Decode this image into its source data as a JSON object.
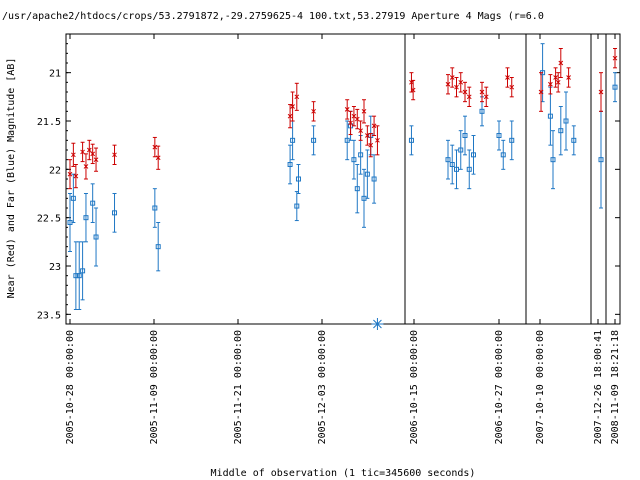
{
  "chart_data": {
    "type": "scatter",
    "title": "/usr/apache2/htdocs/crops/53.2791872,-29.2759625-4 100.txt,53.27919   Aperture 4 Mags (r=6.0",
    "xlabel": "Middle of observation (1 tic=345600 seconds)",
    "ylabel": "Near (Red) and Far (Blue) Magnitude [AB]",
    "y_reversed": true,
    "ylim": [
      23.6,
      20.6
    ],
    "yticks": [
      "21",
      "21.5",
      "22",
      "22.5",
      "23",
      "23.5"
    ],
    "ytick_values": [
      21,
      21.5,
      22,
      22.5,
      23,
      23.5
    ],
    "segments": [
      {
        "xlabels": [
          "2005-10-28 00:00:00",
          "2005-11-09 00:00:00",
          "2005-11-21 00:00:00",
          "2005-12-03 00:00:00"
        ],
        "tick_values": [
          0,
          1,
          2,
          3
        ]
      },
      {
        "xlabels": [
          "2006-10-15 00:00:00",
          "2006-10-27 00:00:00"
        ],
        "tick_values": [
          0,
          1
        ]
      },
      {
        "xlabels": [
          "2007-10-10 00:00:00"
        ],
        "tick_values": [
          0
        ]
      },
      {
        "xlabels": [
          "2007-12-26 18:00:41"
        ],
        "tick_values": [
          0
        ]
      },
      {
        "xlabels": [
          "2008-11-09 18:21:18"
        ],
        "tick_values": [
          0
        ]
      }
    ],
    "colors": {
      "near": "#cc0000",
      "far": "#1f77c4",
      "marker": "#1f77c4"
    },
    "series": [
      {
        "name": "Near (Red)",
        "points": [
          [
            0,
            0,
            22.05,
            0.15
          ],
          [
            0,
            0.04,
            21.85,
            0.12
          ],
          [
            0,
            0.07,
            22.07,
            0.12
          ],
          [
            0,
            0.15,
            21.82,
            0.1
          ],
          [
            0,
            0.19,
            21.97,
            0.13
          ],
          [
            0,
            0.23,
            21.8,
            0.1
          ],
          [
            0,
            0.27,
            21.84,
            0.1
          ],
          [
            0,
            0.31,
            21.9,
            0.12
          ],
          [
            0,
            0.53,
            21.85,
            0.1
          ],
          [
            0,
            1.01,
            21.77,
            0.1
          ],
          [
            0,
            1.05,
            21.88,
            0.12
          ],
          [
            0,
            2.62,
            21.45,
            0.12
          ],
          [
            0,
            2.65,
            21.35,
            0.15
          ],
          [
            0,
            2.7,
            21.25,
            0.14
          ],
          [
            0,
            2.9,
            21.4,
            0.1
          ],
          [
            0,
            3.3,
            21.38,
            0.1
          ],
          [
            0,
            3.34,
            21.52,
            0.12
          ],
          [
            0,
            3.38,
            21.45,
            0.1
          ],
          [
            0,
            3.42,
            21.48,
            0.1
          ],
          [
            0,
            3.46,
            21.6,
            0.1
          ],
          [
            0,
            3.5,
            21.4,
            0.12
          ],
          [
            0,
            3.54,
            21.65,
            0.1
          ],
          [
            0,
            3.58,
            21.75,
            0.12
          ],
          [
            0,
            3.62,
            21.55,
            0.1
          ],
          [
            0,
            3.66,
            21.7,
            0.15
          ],
          [
            1,
            -0.03,
            21.1,
            0.1
          ],
          [
            1,
            -0.01,
            21.18,
            0.1
          ],
          [
            1,
            0.4,
            21.12,
            0.1
          ],
          [
            1,
            0.45,
            21.05,
            0.1
          ],
          [
            1,
            0.5,
            21.15,
            0.1
          ],
          [
            1,
            0.55,
            21.1,
            0.1
          ],
          [
            1,
            0.6,
            21.2,
            0.1
          ],
          [
            1,
            0.65,
            21.25,
            0.1
          ],
          [
            1,
            0.8,
            21.2,
            0.1
          ],
          [
            1,
            0.85,
            21.25,
            0.1
          ],
          [
            1,
            1.1,
            21.05,
            0.1
          ],
          [
            1,
            1.15,
            21.15,
            0.1
          ],
          [
            2,
            0.02,
            21.2,
            0.2
          ],
          [
            2,
            0.2,
            21.12,
            0.1
          ],
          [
            2,
            0.3,
            21.05,
            0.1
          ],
          [
            2,
            0.35,
            21.1,
            0.1
          ],
          [
            2,
            0.4,
            20.9,
            0.15
          ],
          [
            2,
            0.55,
            21.05,
            0.1
          ],
          [
            3,
            0.1,
            21.2,
            0.2
          ],
          [
            4,
            0.0,
            20.85,
            0.1
          ]
        ]
      },
      {
        "name": "Far (Blue)",
        "points": [
          [
            0,
            0,
            22.55,
            0.3
          ],
          [
            0,
            0.04,
            22.3,
            0.25
          ],
          [
            0,
            0.07,
            23.1,
            0.35
          ],
          [
            0,
            0.11,
            23.1,
            0.35
          ],
          [
            0,
            0.15,
            23.05,
            0.3
          ],
          [
            0,
            0.19,
            22.5,
            0.25
          ],
          [
            0,
            0.27,
            22.35,
            0.2
          ],
          [
            0,
            0.31,
            22.7,
            0.3
          ],
          [
            0,
            0.53,
            22.45,
            0.2
          ],
          [
            0,
            1.01,
            22.4,
            0.2
          ],
          [
            0,
            1.05,
            22.8,
            0.25
          ],
          [
            0,
            2.62,
            21.95,
            0.2
          ],
          [
            0,
            2.65,
            21.7,
            0.2
          ],
          [
            0,
            2.7,
            22.38,
            0.15
          ],
          [
            0,
            2.72,
            22.1,
            0.15
          ],
          [
            0,
            2.9,
            21.7,
            0.15
          ],
          [
            0,
            3.3,
            21.7,
            0.2
          ],
          [
            0,
            3.34,
            21.55,
            0.15
          ],
          [
            0,
            3.38,
            21.9,
            0.2
          ],
          [
            0,
            3.42,
            22.2,
            0.25
          ],
          [
            0,
            3.46,
            21.85,
            0.2
          ],
          [
            0,
            3.5,
            22.3,
            0.3
          ],
          [
            0,
            3.54,
            22.05,
            0.25
          ],
          [
            0,
            3.58,
            21.65,
            0.2
          ],
          [
            0,
            3.62,
            22.1,
            0.25
          ],
          [
            1,
            -0.03,
            21.7,
            0.15
          ],
          [
            1,
            0.4,
            21.9,
            0.2
          ],
          [
            1,
            0.45,
            21.95,
            0.2
          ],
          [
            1,
            0.5,
            22.0,
            0.2
          ],
          [
            1,
            0.55,
            21.8,
            0.2
          ],
          [
            1,
            0.6,
            21.65,
            0.2
          ],
          [
            1,
            0.65,
            22.0,
            0.2
          ],
          [
            1,
            0.7,
            21.85,
            0.2
          ],
          [
            1,
            0.8,
            21.4,
            0.15
          ],
          [
            1,
            1.0,
            21.65,
            0.15
          ],
          [
            1,
            1.05,
            21.85,
            0.15
          ],
          [
            1,
            1.15,
            21.7,
            0.2
          ],
          [
            2,
            0.05,
            21.0,
            0.3
          ],
          [
            2,
            0.2,
            21.45,
            0.3
          ],
          [
            2,
            0.25,
            21.9,
            0.3
          ],
          [
            2,
            0.4,
            21.6,
            0.25
          ],
          [
            2,
            0.5,
            21.5,
            0.3
          ],
          [
            2,
            0.65,
            21.7,
            0.15
          ],
          [
            3,
            0.1,
            21.9,
            0.5
          ],
          [
            4,
            0.0,
            21.15,
            0.15
          ]
        ]
      }
    ],
    "marker": {
      "segment": 0,
      "x": 3.66,
      "y": 23.6,
      "shape": "star"
    }
  }
}
